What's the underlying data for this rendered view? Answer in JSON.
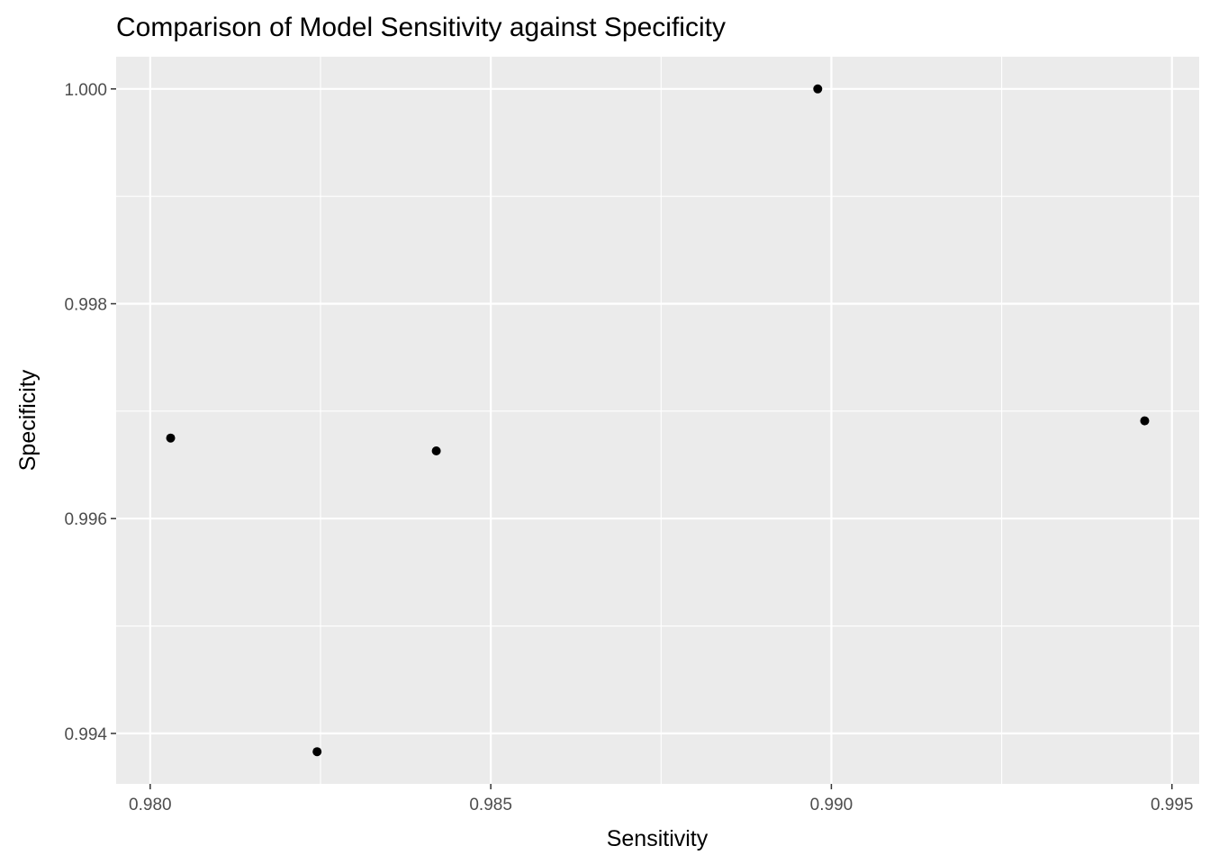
{
  "chart_data": {
    "type": "scatter",
    "title": "Comparison of Model Sensitivity against Specificity",
    "xlabel": "Sensitivity",
    "ylabel": "Specificity",
    "xlim": [
      0.9795,
      0.9954
    ],
    "ylim": [
      0.99353,
      1.0003
    ],
    "x_ticks": [
      0.98,
      0.985,
      0.99,
      0.995
    ],
    "x_tick_labels": [
      "0.980",
      "0.985",
      "0.990",
      "0.995"
    ],
    "y_ticks": [
      0.994,
      0.996,
      0.998,
      1.0
    ],
    "y_tick_labels": [
      "0.994",
      "0.996",
      "0.998",
      "1.000"
    ],
    "grid": true,
    "legend": "none",
    "colors": {
      "panel": "#ebebeb",
      "grid": "#ffffff",
      "point": "#000000"
    },
    "points": [
      {
        "x": 0.9803,
        "y": 0.99675
      },
      {
        "x": 0.98245,
        "y": 0.99383
      },
      {
        "x": 0.9842,
        "y": 0.99663
      },
      {
        "x": 0.9898,
        "y": 1.0
      },
      {
        "x": 0.9946,
        "y": 0.99691
      }
    ]
  }
}
